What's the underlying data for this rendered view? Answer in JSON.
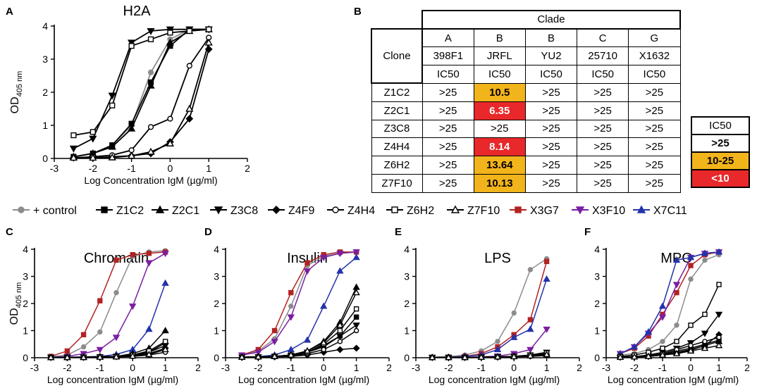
{
  "colors": {
    "control": "#8c8c8c",
    "black": "#000000",
    "X3G7": "#b22222",
    "X3F10": "#7b1fa2",
    "X7C11": "#2233aa",
    "orange": "#f2b41b",
    "red": "#e8282a"
  },
  "panel_B": {
    "letter": "B",
    "header_clade": "Clade",
    "clone_header": "Clone",
    "columns": [
      {
        "clade": "A",
        "virus": "398F1",
        "ic": "IC50"
      },
      {
        "clade": "B",
        "virus": "JRFL",
        "ic": "IC50"
      },
      {
        "clade": "B",
        "virus": "YU2",
        "ic": "IC50"
      },
      {
        "clade": "C",
        "virus": "25710",
        "ic": "IC50"
      },
      {
        "clade": "G",
        "virus": "X1632",
        "ic": "IC50"
      }
    ],
    "rows": [
      {
        "clone": "Z1C2",
        "vals": [
          ">25",
          "10.5",
          ">25",
          ">25",
          ">25"
        ]
      },
      {
        "clone": "Z2C1",
        "vals": [
          ">25",
          "6.35",
          ">25",
          ">25",
          ">25"
        ]
      },
      {
        "clone": "Z3C8",
        "vals": [
          ">25",
          ">25",
          ">25",
          ">25",
          ">25"
        ]
      },
      {
        "clone": "Z4H4",
        "vals": [
          ">25",
          "8.14",
          ">25",
          ">25",
          ">25"
        ]
      },
      {
        "clone": "Z6H2",
        "vals": [
          ">25",
          "13.64",
          ">25",
          ">25",
          ">25"
        ]
      },
      {
        "clone": "Z7F10",
        "vals": [
          ">25",
          "10.13",
          ">25",
          ">25",
          ">25"
        ]
      }
    ],
    "key": {
      "title": "IC50",
      "levels": [
        ">25",
        "10-25",
        "<10"
      ]
    }
  },
  "chart_data": [
    {
      "panel": "A",
      "type": "line",
      "title": "H2A",
      "xlabel": "Log Concentration IgM (µg/ml)",
      "ylabel": "OD405 nm",
      "ylabel_main": "OD",
      "ylabel_sub": "405 nm",
      "xlim": [
        -3,
        2
      ],
      "ylim": [
        0,
        4
      ],
      "xticks": [
        "-3",
        "-2",
        "-1",
        "0",
        "1",
        "2"
      ],
      "yticks": [
        "0",
        "1",
        "2",
        "3",
        "4"
      ],
      "x": [
        -2.5,
        -2,
        -1.5,
        -1,
        -0.5,
        0,
        0.5,
        1
      ],
      "series": [
        {
          "name": "+ control",
          "values": [
            0.05,
            0.15,
            0.4,
            1.0,
            2.6,
            3.6,
            3.9,
            3.9
          ]
        },
        {
          "name": "Z1C2",
          "values": [
            0.05,
            0.15,
            0.4,
            1.05,
            2.3,
            3.4,
            3.9,
            3.9
          ]
        },
        {
          "name": "Z2C1",
          "values": [
            0.05,
            0.15,
            0.35,
            0.9,
            2.2,
            3.5,
            3.85,
            3.9
          ]
        },
        {
          "name": "Z3C8",
          "values": [
            0.3,
            0.6,
            1.9,
            3.5,
            3.85,
            3.9,
            3.9,
            3.9
          ]
        },
        {
          "name": "Z4F9",
          "values": [
            0.02,
            0.02,
            0.05,
            0.08,
            0.15,
            0.5,
            1.2,
            3.3
          ]
        },
        {
          "name": "Z4H4",
          "values": [
            0.02,
            0.05,
            0.1,
            0.25,
            0.95,
            1.2,
            2.8,
            3.65
          ]
        },
        {
          "name": "Z6H2",
          "values": [
            0.7,
            0.8,
            1.6,
            3.4,
            3.6,
            3.8,
            3.85,
            3.9
          ]
        },
        {
          "name": "Z7F10",
          "values": [
            0.02,
            0.02,
            0.03,
            0.08,
            0.2,
            0.45,
            1.5,
            3.5
          ]
        }
      ]
    },
    {
      "panel": "C",
      "type": "line",
      "title": "Chromatin",
      "xlabel": "Log concentration IgM (µg/ml)",
      "ylabel": "OD405 nm",
      "xlim": [
        -3,
        2
      ],
      "ylim": [
        0,
        4
      ],
      "xticks": [
        "-3",
        "-2",
        "-1",
        "0",
        "1",
        "2"
      ],
      "yticks": [
        "0",
        "1",
        "2",
        "3",
        "4"
      ],
      "x": [
        -2.5,
        -2,
        -1.5,
        -1,
        -0.5,
        0,
        0.5,
        1
      ],
      "series": [
        {
          "name": "+ control",
          "values": [
            0.03,
            0.1,
            0.4,
            0.95,
            2.4,
            3.75,
            3.9,
            3.95
          ]
        },
        {
          "name": "X3G7",
          "values": [
            0.05,
            0.25,
            0.85,
            2.1,
            3.6,
            3.8,
            3.85,
            3.9
          ]
        },
        {
          "name": "X3F10",
          "values": [
            0.02,
            0.05,
            0.15,
            0.3,
            0.75,
            1.9,
            3.5,
            3.85
          ]
        },
        {
          "name": "X7C11",
          "values": [
            0.01,
            0.02,
            0.03,
            0.05,
            0.12,
            0.3,
            1.05,
            2.75
          ]
        },
        {
          "name": "Z1C2",
          "values": [
            0.01,
            0.01,
            0.02,
            0.03,
            0.05,
            0.1,
            0.2,
            0.55
          ]
        },
        {
          "name": "Z2C1",
          "values": [
            0.01,
            0.01,
            0.02,
            0.03,
            0.05,
            0.15,
            0.35,
            1.0
          ]
        },
        {
          "name": "Z3C8",
          "values": [
            0.01,
            0.01,
            0.02,
            0.03,
            0.05,
            0.1,
            0.2,
            0.45
          ]
        },
        {
          "name": "Z4F9",
          "values": [
            0.01,
            0.01,
            0.01,
            0.02,
            0.04,
            0.08,
            0.15,
            0.35
          ]
        },
        {
          "name": "Z4H4",
          "values": [
            0.01,
            0.01,
            0.01,
            0.02,
            0.03,
            0.05,
            0.1,
            0.2
          ]
        },
        {
          "name": "Z6H2",
          "values": [
            0.01,
            0.01,
            0.02,
            0.03,
            0.05,
            0.1,
            0.25,
            0.6
          ]
        },
        {
          "name": "Z7F10",
          "values": [
            0.01,
            0.01,
            0.01,
            0.02,
            0.03,
            0.06,
            0.12,
            0.3
          ]
        }
      ]
    },
    {
      "panel": "D",
      "type": "line",
      "title": "Insulin",
      "xlabel": "Log concentration IgM (µg/ml)",
      "ylabel": "",
      "xlim": [
        -3,
        2
      ],
      "ylim": [
        0,
        4
      ],
      "xticks": [
        "-3",
        "-2",
        "-1",
        "0",
        "1",
        "2"
      ],
      "yticks": [
        "0",
        "1",
        "2",
        "3",
        "4"
      ],
      "x": [
        -2.5,
        -2,
        -1.5,
        -1,
        -0.5,
        0,
        0.5,
        1
      ],
      "series": [
        {
          "name": "+ control",
          "values": [
            0.1,
            0.25,
            0.7,
            1.9,
            3.4,
            3.75,
            3.85,
            3.9
          ]
        },
        {
          "name": "X3G7",
          "values": [
            0.1,
            0.3,
            1.0,
            2.4,
            3.5,
            3.8,
            3.9,
            3.9
          ]
        },
        {
          "name": "X3F10",
          "values": [
            0.1,
            0.2,
            0.6,
            1.5,
            3.2,
            3.7,
            3.85,
            3.9
          ]
        },
        {
          "name": "X7C11",
          "values": [
            0.02,
            0.04,
            0.1,
            0.3,
            0.65,
            1.9,
            3.2,
            3.7
          ]
        },
        {
          "name": "Z1C2",
          "values": [
            0.02,
            0.03,
            0.05,
            0.1,
            0.2,
            0.4,
            0.8,
            1.5
          ]
        },
        {
          "name": "Z2C1",
          "values": [
            0.02,
            0.03,
            0.05,
            0.1,
            0.25,
            0.6,
            1.3,
            2.6
          ]
        },
        {
          "name": "Z3C8",
          "values": [
            0.02,
            0.03,
            0.05,
            0.08,
            0.2,
            0.45,
            0.8,
            1.2
          ]
        },
        {
          "name": "Z4F9",
          "values": [
            0.01,
            0.02,
            0.03,
            0.05,
            0.1,
            0.2,
            0.3,
            0.35
          ]
        },
        {
          "name": "Z4H4",
          "values": [
            0.01,
            0.02,
            0.04,
            0.07,
            0.15,
            0.3,
            0.6,
            1.0
          ]
        },
        {
          "name": "Z6H2",
          "values": [
            0.02,
            0.03,
            0.05,
            0.1,
            0.2,
            0.5,
            1.0,
            1.8
          ]
        },
        {
          "name": "Z7F10",
          "values": [
            0.02,
            0.03,
            0.05,
            0.1,
            0.25,
            0.55,
            1.2,
            2.4
          ]
        }
      ]
    },
    {
      "panel": "E",
      "type": "line",
      "title": "LPS",
      "xlabel": "Log concentration IgM (µg/ml)",
      "ylabel": "",
      "xlim": [
        -3,
        2
      ],
      "ylim": [
        0,
        4
      ],
      "xticks": [
        "-3",
        "-2",
        "-1",
        "0",
        "1",
        "2"
      ],
      "yticks": [
        "0",
        "1",
        "2",
        "3",
        "4"
      ],
      "x": [
        -2.5,
        -2,
        -1.5,
        -1,
        -0.5,
        0,
        0.5,
        1
      ],
      "series": [
        {
          "name": "+ control",
          "values": [
            0.02,
            0.04,
            0.1,
            0.25,
            0.6,
            1.65,
            3.25,
            3.65
          ]
        },
        {
          "name": "X3G7",
          "values": [
            0.01,
            0.02,
            0.05,
            0.15,
            0.4,
            0.85,
            1.4,
            3.55
          ]
        },
        {
          "name": "X3F10",
          "values": [
            0.01,
            0.01,
            0.02,
            0.03,
            0.06,
            0.15,
            0.3,
            1.05
          ]
        },
        {
          "name": "X7C11",
          "values": [
            0.01,
            0.02,
            0.05,
            0.1,
            0.3,
            0.75,
            1.05,
            2.9
          ]
        },
        {
          "name": "Z1C2",
          "values": [
            0.01,
            0.01,
            0.01,
            0.02,
            0.03,
            0.05,
            0.08,
            0.15
          ]
        },
        {
          "name": "Z2C1",
          "values": [
            0.01,
            0.01,
            0.01,
            0.02,
            0.03,
            0.05,
            0.08,
            0.12
          ]
        },
        {
          "name": "Z3C8",
          "values": [
            0.01,
            0.01,
            0.01,
            0.02,
            0.03,
            0.05,
            0.1,
            0.2
          ]
        },
        {
          "name": "Z4F9",
          "values": [
            0.01,
            0.01,
            0.01,
            0.02,
            0.02,
            0.04,
            0.06,
            0.1
          ]
        },
        {
          "name": "Z4H4",
          "values": [
            0.01,
            0.01,
            0.01,
            0.02,
            0.02,
            0.03,
            0.05,
            0.08
          ]
        },
        {
          "name": "Z6H2",
          "values": [
            0.01,
            0.01,
            0.01,
            0.02,
            0.03,
            0.05,
            0.1,
            0.18
          ]
        },
        {
          "name": "Z7F10",
          "values": [
            0.01,
            0.01,
            0.01,
            0.02,
            0.03,
            0.04,
            0.07,
            0.12
          ]
        }
      ]
    },
    {
      "panel": "F",
      "type": "line",
      "title": "MPO",
      "xlabel": "Log concentration IgM (µg/ml)",
      "ylabel": "",
      "xlim": [
        -3,
        2
      ],
      "ylim": [
        0,
        4
      ],
      "xticks": [
        "-3",
        "-2",
        "-1",
        "0",
        "1",
        "2"
      ],
      "yticks": [
        "0",
        "1",
        "2",
        "3",
        "4"
      ],
      "x": [
        -2.5,
        -2,
        -1.5,
        -1,
        -0.5,
        0,
        0.5,
        1
      ],
      "series": [
        {
          "name": "+ control",
          "values": [
            0.1,
            0.15,
            0.3,
            0.6,
            1.2,
            2.9,
            3.6,
            3.8
          ]
        },
        {
          "name": "X3G7",
          "values": [
            0.15,
            0.35,
            0.8,
            1.6,
            2.4,
            3.4,
            3.8,
            3.9
          ]
        },
        {
          "name": "X3F10",
          "values": [
            0.15,
            0.4,
            0.9,
            1.5,
            2.7,
            3.7,
            3.85,
            3.9
          ]
        },
        {
          "name": "X7C11",
          "values": [
            0.15,
            0.4,
            0.95,
            1.9,
            3.6,
            3.7,
            3.85,
            3.9
          ]
        },
        {
          "name": "Z1C2",
          "values": [
            0.02,
            0.03,
            0.06,
            0.12,
            0.25,
            0.35,
            0.5,
            0.65
          ]
        },
        {
          "name": "Z2C1",
          "values": [
            0.02,
            0.03,
            0.05,
            0.1,
            0.2,
            0.3,
            0.45,
            0.6
          ]
        },
        {
          "name": "Z3C8",
          "values": [
            0.02,
            0.04,
            0.1,
            0.2,
            0.35,
            0.55,
            0.9,
            1.6
          ]
        },
        {
          "name": "Z4F9",
          "values": [
            0.02,
            0.03,
            0.05,
            0.1,
            0.18,
            0.28,
            0.45,
            0.85
          ]
        },
        {
          "name": "Z4H4",
          "values": [
            0.02,
            0.04,
            0.08,
            0.15,
            0.3,
            0.45,
            0.6,
            0.75
          ]
        },
        {
          "name": "Z6H2",
          "values": [
            0.05,
            0.1,
            0.2,
            0.35,
            0.6,
            1.2,
            1.6,
            2.7
          ]
        },
        {
          "name": "Z7F10",
          "values": [
            0.02,
            0.03,
            0.05,
            0.1,
            0.15,
            0.25,
            0.35,
            0.45
          ]
        }
      ]
    }
  ],
  "legend": {
    "items": [
      {
        "name": "+ control",
        "color": "#8c8c8c",
        "marker": "circle-filled"
      },
      {
        "name": "Z1C2",
        "color": "#000000",
        "marker": "square-filled"
      },
      {
        "name": "Z2C1",
        "color": "#000000",
        "marker": "triangle-up-filled"
      },
      {
        "name": "Z3C8",
        "color": "#000000",
        "marker": "triangle-down-filled"
      },
      {
        "name": "Z4F9",
        "color": "#000000",
        "marker": "diamond-filled"
      },
      {
        "name": "Z4H4",
        "color": "#000000",
        "marker": "circle-open"
      },
      {
        "name": "Z6H2",
        "color": "#000000",
        "marker": "square-open"
      },
      {
        "name": "Z7F10",
        "color": "#000000",
        "marker": "triangle-up-open"
      },
      {
        "name": "X3G7",
        "color": "#b22222",
        "marker": "square-filled"
      },
      {
        "name": "X3F10",
        "color": "#7b1fa2",
        "marker": "triangle-down-filled"
      },
      {
        "name": "X7C11",
        "color": "#2233aa",
        "marker": "triangle-up-filled"
      }
    ]
  }
}
